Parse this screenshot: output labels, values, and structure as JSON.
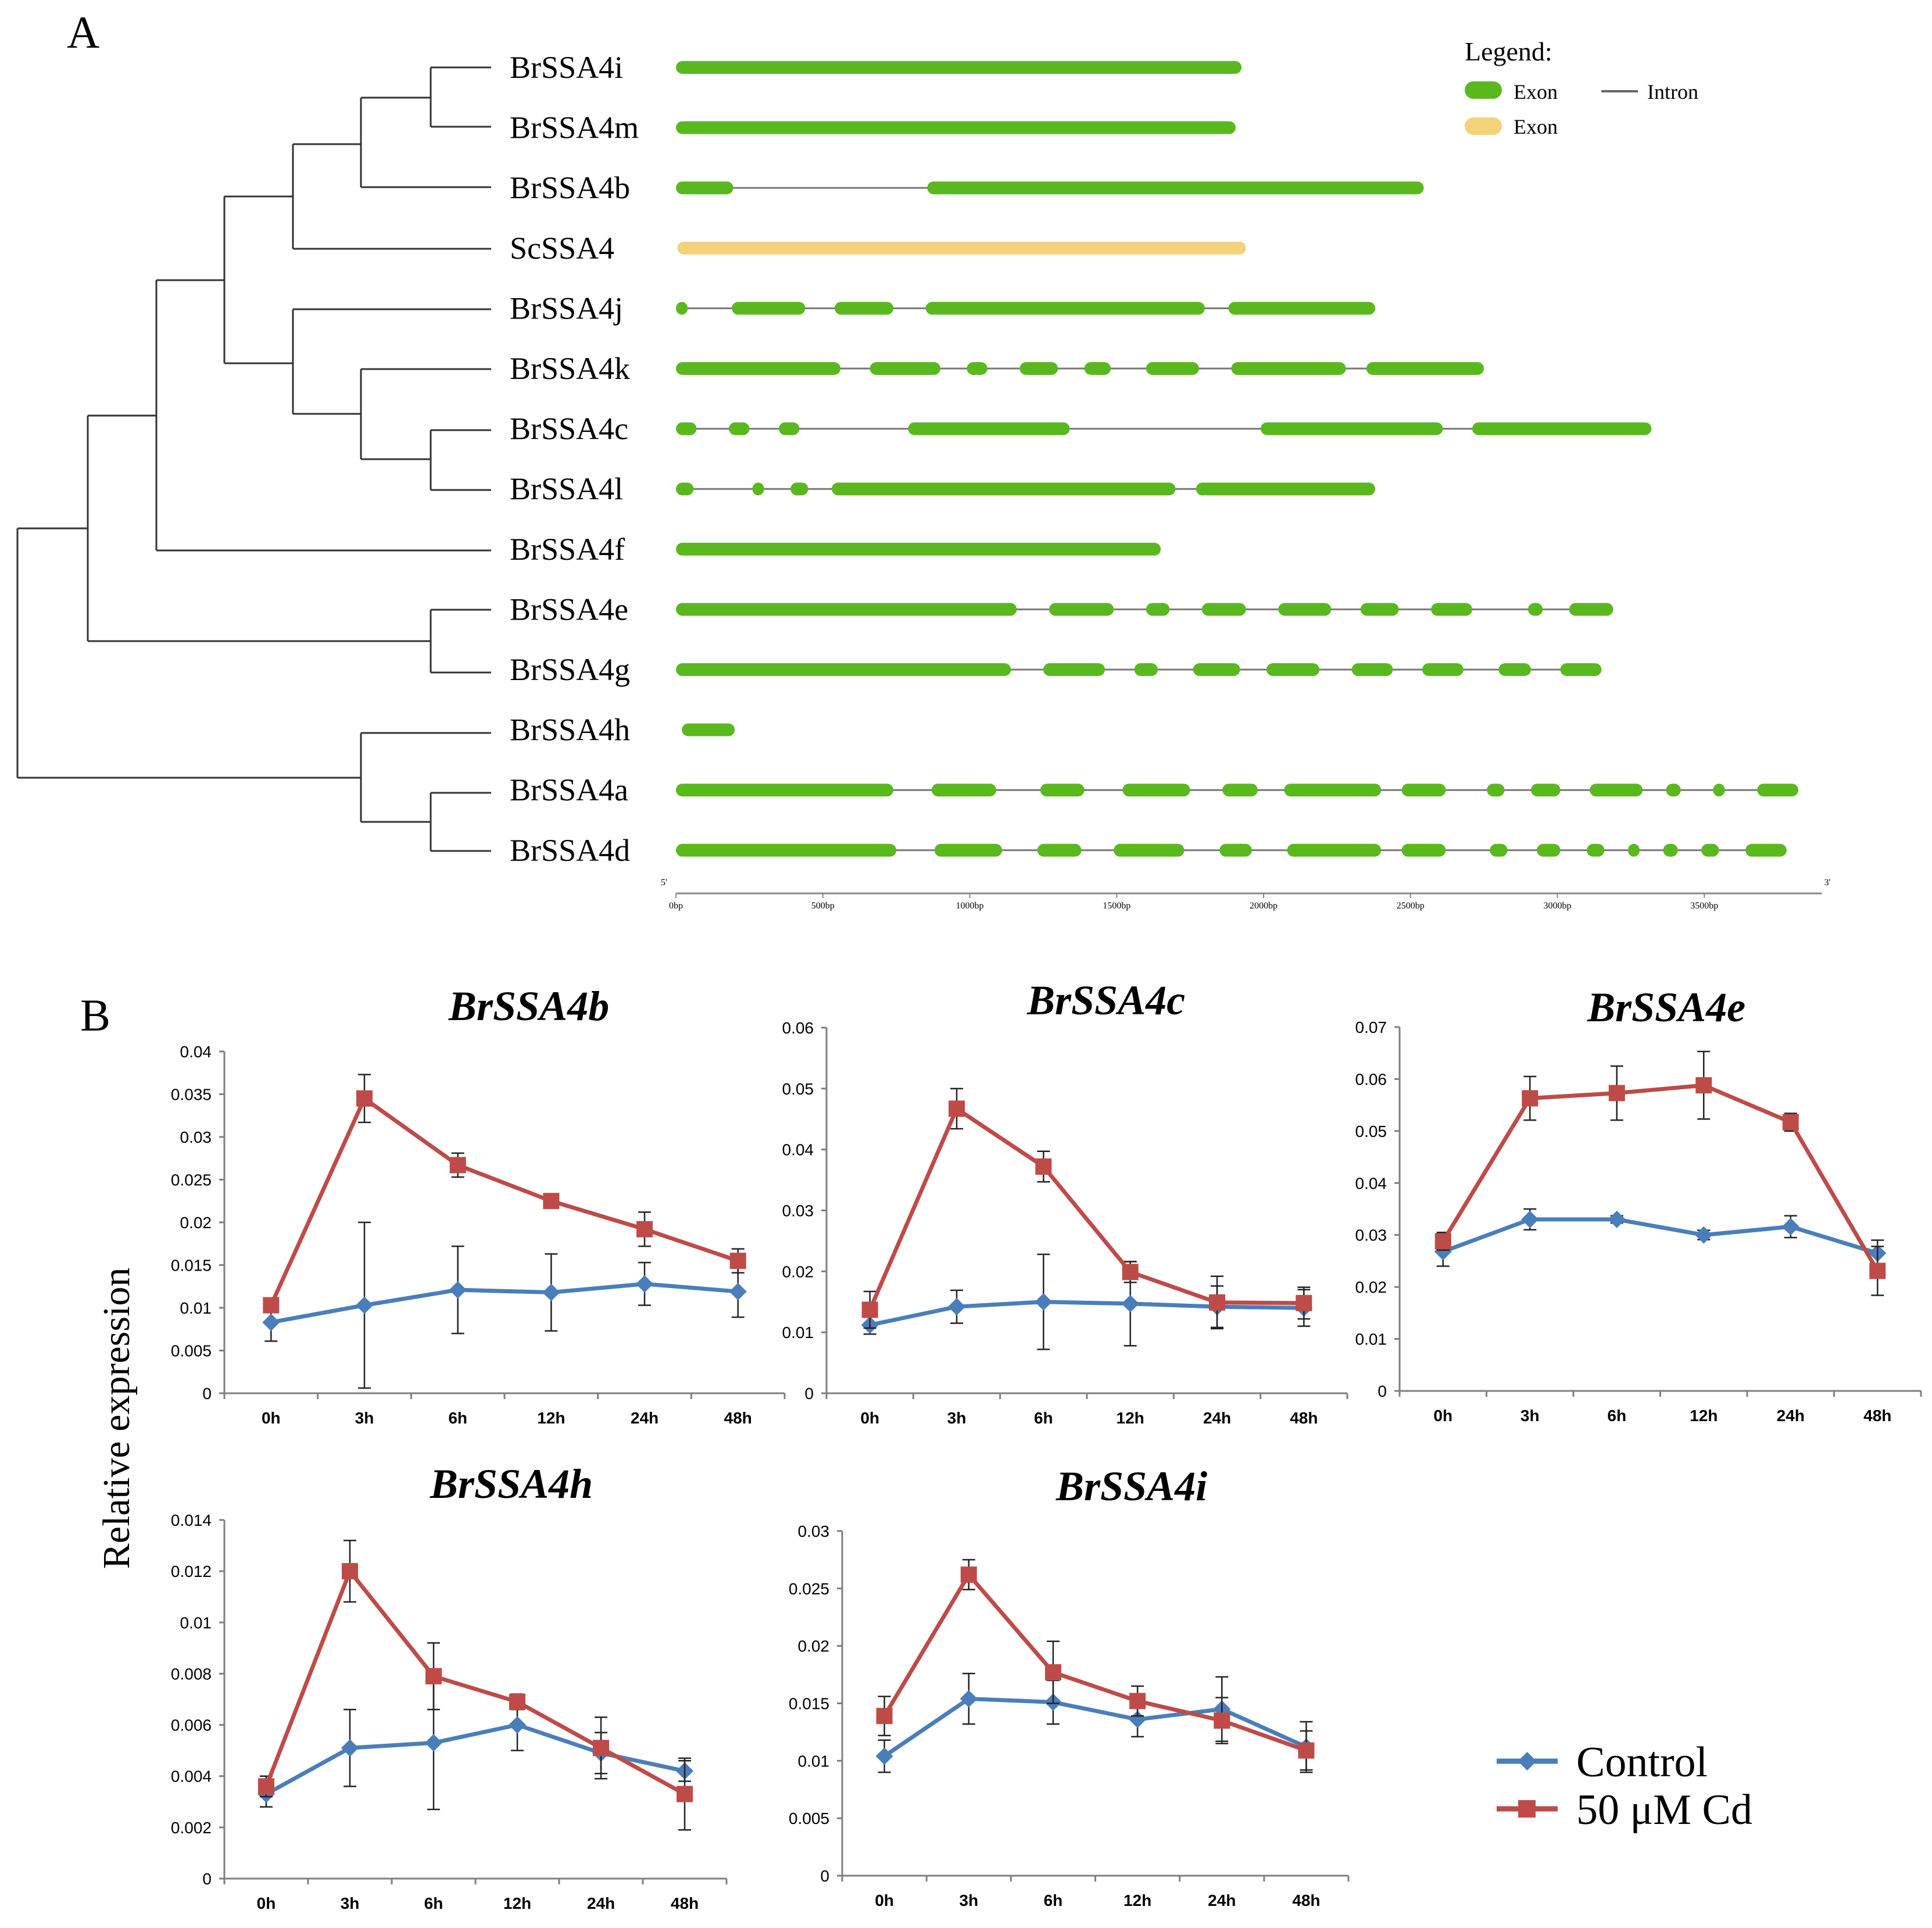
{
  "panel_a": {
    "label": "A",
    "legend": {
      "title": "Legend:",
      "items": [
        {
          "label": "Exon",
          "kind": "exon-green",
          "color": "#5ab81f"
        },
        {
          "label": "Exon",
          "kind": "exon-yellow",
          "color": "#f3d27a"
        },
        {
          "label": "Intron",
          "kind": "intron",
          "color": "#666666"
        }
      ]
    },
    "scale": {
      "five_prime": "5'",
      "three_prime": "3'",
      "ticks": [
        {
          "bp": 0,
          "label": "0bp"
        },
        {
          "bp": 500,
          "label": "500bp"
        },
        {
          "bp": 1000,
          "label": "1000bp"
        },
        {
          "bp": 1500,
          "label": "1500bp"
        },
        {
          "bp": 2000,
          "label": "2000bp"
        },
        {
          "bp": 2500,
          "label": "2500bp"
        },
        {
          "bp": 3000,
          "label": "3000bp"
        },
        {
          "bp": 3500,
          "label": "3500bp"
        }
      ],
      "max_bp": 3900
    },
    "genes": [
      {
        "name": "BrSSA4i",
        "color": "#5ab81f",
        "exons": [
          [
            0,
            1925
          ]
        ]
      },
      {
        "name": "BrSSA4m",
        "color": "#5ab81f",
        "exons": [
          [
            0,
            1905
          ]
        ]
      },
      {
        "name": "BrSSA4b",
        "color": "#5ab81f",
        "exons": [
          [
            0,
            195
          ],
          [
            855,
            2545
          ]
        ]
      },
      {
        "name": "ScSSA4",
        "color": "#f3d27a",
        "exons": [
          [
            5,
            1940
          ]
        ]
      },
      {
        "name": "BrSSA4j",
        "color": "#5ab81f",
        "exons": [
          [
            0,
            40
          ],
          [
            190,
            440
          ],
          [
            540,
            740
          ],
          [
            850,
            1800
          ],
          [
            1880,
            2380
          ]
        ]
      },
      {
        "name": "BrSSA4k",
        "color": "#5ab81f",
        "exons": [
          [
            0,
            560
          ],
          [
            660,
            900
          ],
          [
            990,
            1060
          ],
          [
            1170,
            1300
          ],
          [
            1390,
            1480
          ],
          [
            1600,
            1780
          ],
          [
            1890,
            2280
          ],
          [
            2350,
            2750
          ]
        ]
      },
      {
        "name": "BrSSA4c",
        "color": "#5ab81f",
        "exons": [
          [
            0,
            70
          ],
          [
            180,
            250
          ],
          [
            350,
            420
          ],
          [
            790,
            1340
          ],
          [
            1990,
            2610
          ],
          [
            2710,
            3320
          ]
        ]
      },
      {
        "name": "BrSSA4l",
        "color": "#5ab81f",
        "exons": [
          [
            0,
            60
          ],
          [
            260,
            300
          ],
          [
            390,
            450
          ],
          [
            530,
            1700
          ],
          [
            1770,
            2380
          ]
        ]
      },
      {
        "name": "BrSSA4f",
        "color": "#5ab81f",
        "exons": [
          [
            0,
            1650
          ]
        ]
      },
      {
        "name": "BrSSA4e",
        "color": "#5ab81f",
        "exons": [
          [
            0,
            1160
          ],
          [
            1270,
            1490
          ],
          [
            1600,
            1680
          ],
          [
            1790,
            1940
          ],
          [
            2050,
            2230
          ],
          [
            2330,
            2460
          ],
          [
            2570,
            2710
          ],
          [
            2900,
            2950
          ],
          [
            3040,
            3190
          ]
        ]
      },
      {
        "name": "BrSSA4g",
        "color": "#5ab81f",
        "exons": [
          [
            0,
            1140
          ],
          [
            1250,
            1460
          ],
          [
            1560,
            1640
          ],
          [
            1760,
            1920
          ],
          [
            2010,
            2190
          ],
          [
            2300,
            2440
          ],
          [
            2540,
            2680
          ],
          [
            2800,
            2910
          ],
          [
            3010,
            3150
          ]
        ]
      },
      {
        "name": "BrSSA4h",
        "color": "#5ab81f",
        "exons": [
          [
            20,
            200
          ]
        ]
      },
      {
        "name": "BrSSA4a",
        "color": "#5ab81f",
        "exons": [
          [
            0,
            740
          ],
          [
            870,
            1090
          ],
          [
            1240,
            1390
          ],
          [
            1520,
            1750
          ],
          [
            1860,
            1980
          ],
          [
            2070,
            2400
          ],
          [
            2470,
            2620
          ],
          [
            2760,
            2820
          ],
          [
            2910,
            3010
          ],
          [
            3110,
            3290
          ],
          [
            3370,
            3420
          ],
          [
            3530,
            3570
          ],
          [
            3680,
            3820
          ]
        ]
      },
      {
        "name": "BrSSA4d",
        "color": "#5ab81f",
        "exons": [
          [
            0,
            750
          ],
          [
            880,
            1110
          ],
          [
            1230,
            1380
          ],
          [
            1490,
            1730
          ],
          [
            1850,
            1960
          ],
          [
            2080,
            2400
          ],
          [
            2470,
            2620
          ],
          [
            2770,
            2830
          ],
          [
            2930,
            3010
          ],
          [
            3100,
            3160
          ],
          [
            3240,
            3280
          ],
          [
            3360,
            3410
          ],
          [
            3490,
            3550
          ],
          [
            3640,
            3780
          ]
        ]
      }
    ]
  },
  "panel_b": {
    "label": "B",
    "ylabel": "Relative expression",
    "legend": [
      {
        "name": "Control",
        "color": "#4a7ebb",
        "marker": "diamond"
      },
      {
        "name": "50 μM Cd",
        "color": "#be4b48",
        "marker": "square"
      }
    ]
  },
  "chart_data": [
    {
      "type": "line",
      "title": "BrSSA4b",
      "categories": [
        "0h",
        "3h",
        "6h",
        "12h",
        "24h",
        "48h"
      ],
      "ylim": [
        0,
        0.04
      ],
      "yticks": [
        "0",
        "0.005",
        "0.01",
        "0.015",
        "0.02",
        "0.025",
        "0.03",
        "0.035",
        "0.04"
      ],
      "series": [
        {
          "name": "Control",
          "values": [
            0.0083,
            0.0103,
            0.0121,
            0.0118,
            0.0128,
            0.0119
          ],
          "errors": [
            0.0022,
            0.0097,
            0.0051,
            0.0045,
            0.0025,
            0.003
          ]
        },
        {
          "name": "50 μM Cd",
          "values": [
            0.0103,
            0.0345,
            0.0267,
            0.0225,
            0.0192,
            0.0155
          ],
          "errors": [
            0.0006,
            0.0028,
            0.0014,
            0.0004,
            0.002,
            0.0014
          ]
        }
      ]
    },
    {
      "type": "line",
      "title": "BrSSA4c",
      "categories": [
        "0h",
        "3h",
        "6h",
        "12h",
        "24h",
        "48h"
      ],
      "ylim": [
        0,
        0.06
      ],
      "yticks": [
        "0",
        "0.01",
        "0.02",
        "0.03",
        "0.04",
        "0.05",
        "0.06"
      ],
      "series": [
        {
          "name": "Control",
          "values": [
            0.0112,
            0.0142,
            0.015,
            0.0147,
            0.0142,
            0.014
          ],
          "errors": [
            0.0015,
            0.0027,
            0.0078,
            0.0069,
            0.0034,
            0.003
          ]
        },
        {
          "name": "50 μM Cd",
          "values": [
            0.0137,
            0.0467,
            0.0372,
            0.0199,
            0.0149,
            0.0148
          ],
          "errors": [
            0.003,
            0.0033,
            0.0025,
            0.0017,
            0.0043,
            0.0026
          ]
        }
      ]
    },
    {
      "type": "line",
      "title": "BrSSA4e",
      "categories": [
        "0h",
        "3h",
        "6h",
        "12h",
        "24h",
        "48h"
      ],
      "ylim": [
        0,
        0.07
      ],
      "yticks": [
        "0",
        "0.01",
        "0.02",
        "0.03",
        "0.04",
        "0.05",
        "0.06",
        "0.07"
      ],
      "series": [
        {
          "name": "Control",
          "values": [
            0.0268,
            0.033,
            0.033,
            0.03,
            0.0316,
            0.0265
          ],
          "errors": [
            0.0028,
            0.002,
            0.0007,
            0.0009,
            0.0021,
            0.0025
          ]
        },
        {
          "name": "50 μM Cd",
          "values": [
            0.0288,
            0.0563,
            0.0573,
            0.0588,
            0.0517,
            0.0231
          ],
          "errors": [
            0.0017,
            0.0042,
            0.0052,
            0.0065,
            0.0017,
            0.0047
          ]
        }
      ]
    },
    {
      "type": "line",
      "title": "BrSSA4h",
      "categories": [
        "0h",
        "3h",
        "6h",
        "12h",
        "24h",
        "48h"
      ],
      "ylim": [
        0,
        0.014
      ],
      "yticks": [
        "0",
        "0.002",
        "0.004",
        "0.006",
        "0.008",
        "0.01",
        "0.012",
        "0.014"
      ],
      "series": [
        {
          "name": "Control",
          "values": [
            0.0033,
            0.0051,
            0.0053,
            0.006,
            0.0049,
            0.0042
          ],
          "errors": [
            0.0005,
            0.0015,
            0.0026,
            0.001,
            0.0008,
            0.0004
          ]
        },
        {
          "name": "50 μM Cd",
          "values": [
            0.0036,
            0.012,
            0.0079,
            0.0069,
            0.0051,
            0.0033
          ],
          "errors": [
            0.0004,
            0.0012,
            0.0013,
            0.0003,
            0.0012,
            0.0014
          ]
        }
      ]
    },
    {
      "type": "line",
      "title": "BrSSA4i",
      "categories": [
        "0h",
        "3h",
        "6h",
        "12h",
        "24h",
        "48h"
      ],
      "ylim": [
        0,
        0.03
      ],
      "yticks": [
        "0",
        "0.005",
        "0.01",
        "0.015",
        "0.02",
        "0.025",
        "0.03"
      ],
      "series": [
        {
          "name": "Control",
          "values": [
            0.0104,
            0.0154,
            0.0151,
            0.0136,
            0.0145,
            0.0112
          ],
          "errors": [
            0.0014,
            0.0022,
            0.0019,
            0.0015,
            0.0028,
            0.0022
          ]
        },
        {
          "name": "50 μM Cd",
          "values": [
            0.0139,
            0.0262,
            0.0177,
            0.0152,
            0.0135,
            0.0109
          ],
          "errors": [
            0.0017,
            0.0013,
            0.0027,
            0.0013,
            0.002,
            0.0017
          ]
        }
      ]
    }
  ]
}
